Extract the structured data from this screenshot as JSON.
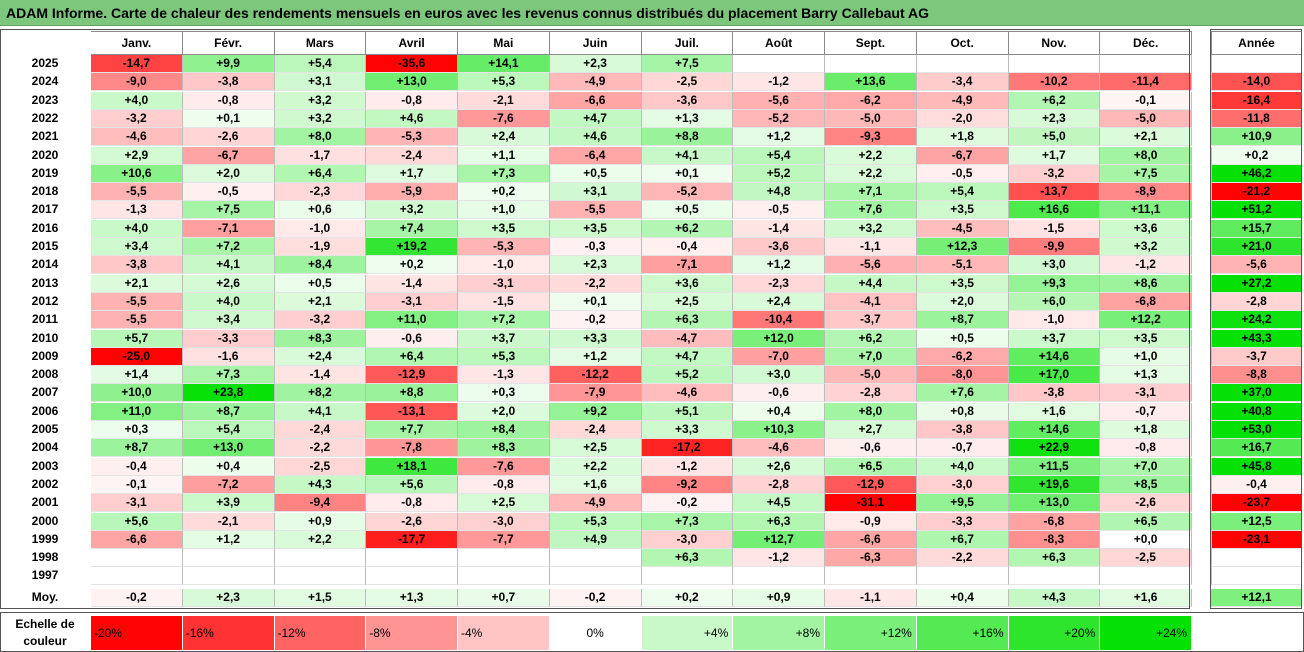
{
  "title": "ADAM Informe. Carte de chaleur des rendements mensuels en euros avec les revenus connus distribués du placement Barry Callebaut AG",
  "chart_data": {
    "type": "heatmap",
    "months": [
      "Janv.",
      "Févr.",
      "Mars",
      "Avril",
      "Mai",
      "Juin",
      "Juil.",
      "Août",
      "Sept.",
      "Oct.",
      "Nov.",
      "Déc."
    ],
    "annual_header": "Année",
    "rows": [
      {
        "year": "2025",
        "m": [
          "-14,7",
          "+9,9",
          "+5,4",
          "-35,6",
          "+14,1",
          "+2,3",
          "+7,5",
          "",
          "",
          "",
          "",
          ""
        ],
        "annual": ""
      },
      {
        "year": "2024",
        "m": [
          "-9,0",
          "-3,8",
          "+3,1",
          "+13,0",
          "+5,3",
          "-4,9",
          "-2,5",
          "-1,2",
          "+13,6",
          "-3,4",
          "-10,2",
          "-11,4"
        ],
        "annual": "-14,0"
      },
      {
        "year": "2023",
        "m": [
          "+4,0",
          "-0,8",
          "+3,2",
          "-0,8",
          "-2,1",
          "-6,6",
          "-3,6",
          "-5,6",
          "-6,2",
          "-4,9",
          "+6,2",
          "-0,1"
        ],
        "annual": "-16,4"
      },
      {
        "year": "2022",
        "m": [
          "-3,2",
          "+0,1",
          "+3,2",
          "+4,6",
          "-7,6",
          "+4,7",
          "+1,3",
          "-5,2",
          "-5,0",
          "-2,0",
          "+2,3",
          "-5,0"
        ],
        "annual": "-11,8"
      },
      {
        "year": "2021",
        "m": [
          "-4,6",
          "-2,6",
          "+8,0",
          "-5,3",
          "+2,4",
          "+4,6",
          "+8,8",
          "+1,2",
          "-9,3",
          "+1,8",
          "+5,0",
          "+2,1"
        ],
        "annual": "+10,9"
      },
      {
        "year": "2020",
        "m": [
          "+2,9",
          "-6,7",
          "-1,7",
          "-2,4",
          "+1,1",
          "-6,4",
          "+4,1",
          "+5,4",
          "+2,2",
          "-6,7",
          "+1,7",
          "+8,0"
        ],
        "annual": "+0,2"
      },
      {
        "year": "2019",
        "m": [
          "+10,6",
          "+2,0",
          "+6,4",
          "+1,7",
          "+7,3",
          "+0,5",
          "+0,1",
          "+5,2",
          "+2,2",
          "-0,5",
          "-3,2",
          "+7,5"
        ],
        "annual": "+46,2"
      },
      {
        "year": "2018",
        "m": [
          "-5,5",
          "-0,5",
          "-2,3",
          "-5,9",
          "+0,2",
          "+3,1",
          "-5,2",
          "+4,8",
          "+7,1",
          "+5,4",
          "-13,7",
          "-8,9"
        ],
        "annual": "-21,2"
      },
      {
        "year": "2017",
        "m": [
          "-1,3",
          "+7,5",
          "+0,6",
          "+3,2",
          "+1,0",
          "-5,5",
          "+0,5",
          "-0,5",
          "+7,6",
          "+3,5",
          "+16,6",
          "+11,1"
        ],
        "annual": "+51,2"
      },
      {
        "year": "2016",
        "m": [
          "+4,0",
          "-7,1",
          "-1,0",
          "+7,4",
          "+3,5",
          "+3,5",
          "+6,2",
          "-1,4",
          "+3,2",
          "-4,5",
          "-1,5",
          "+3,6"
        ],
        "annual": "+15,7"
      },
      {
        "year": "2015",
        "m": [
          "+3,4",
          "+7,2",
          "-1,9",
          "+19,2",
          "-5,3",
          "-0,3",
          "-0,4",
          "-3,6",
          "-1,1",
          "+12,3",
          "-9,9",
          "+3,2"
        ],
        "annual": "+21,0"
      },
      {
        "year": "2014",
        "m": [
          "-3,8",
          "+4,1",
          "+8,4",
          "+0,2",
          "-1,0",
          "+2,3",
          "-7,1",
          "+1,2",
          "-5,6",
          "-5,1",
          "+3,0",
          "-1,2"
        ],
        "annual": "-5,6"
      },
      {
        "year": "2013",
        "m": [
          "+2,1",
          "+2,6",
          "+0,5",
          "-1,4",
          "-3,1",
          "-2,2",
          "+3,6",
          "-2,3",
          "+4,4",
          "+3,5",
          "+9,3",
          "+8,6"
        ],
        "annual": "+27,2"
      },
      {
        "year": "2012",
        "m": [
          "-5,5",
          "+4,0",
          "+2,1",
          "-3,1",
          "-1,5",
          "+0,1",
          "+2,5",
          "+2,4",
          "-4,1",
          "+2,0",
          "+6,0",
          "-6,8"
        ],
        "annual": "-2,8"
      },
      {
        "year": "2011",
        "m": [
          "-5,5",
          "+3,4",
          "-3,2",
          "+11,0",
          "+7,2",
          "-0,2",
          "+6,3",
          "-10,4",
          "-3,7",
          "+8,7",
          "-1,0",
          "+12,2"
        ],
        "annual": "+24,2"
      },
      {
        "year": "2010",
        "m": [
          "+5,7",
          "-3,3",
          "+8,3",
          "-0,6",
          "+3,7",
          "+3,3",
          "-4,7",
          "+12,0",
          "+6,2",
          "+0,5",
          "+3,7",
          "+3,5"
        ],
        "annual": "+43,3"
      },
      {
        "year": "2009",
        "m": [
          "-25,0",
          "-1,6",
          "+2,4",
          "+6,4",
          "+5,3",
          "+1,2",
          "+4,7",
          "-7,0",
          "+7,0",
          "-6,2",
          "+14,6",
          "+1,0"
        ],
        "annual": "-3,7"
      },
      {
        "year": "2008",
        "m": [
          "+1,4",
          "+7,3",
          "-1,4",
          "-12,9",
          "-1,3",
          "-12,2",
          "+5,2",
          "+3,0",
          "-5,0",
          "-8,0",
          "+17,0",
          "+1,3"
        ],
        "annual": "-8,8"
      },
      {
        "year": "2007",
        "m": [
          "+10,0",
          "+23,8",
          "+8,2",
          "+8,8",
          "+0,3",
          "-7,9",
          "-4,6",
          "-0,6",
          "-2,8",
          "+7,6",
          "-3,8",
          "-3,1"
        ],
        "annual": "+37,0"
      },
      {
        "year": "2006",
        "m": [
          "+11,0",
          "+8,7",
          "+4,1",
          "-13,1",
          "+2,0",
          "+9,2",
          "+5,1",
          "+0,4",
          "+8,0",
          "+0,8",
          "+1,6",
          "-0,7"
        ],
        "annual": "+40,8"
      },
      {
        "year": "2005",
        "m": [
          "+0,3",
          "+5,4",
          "-2,4",
          "+7,7",
          "+8,4",
          "-2,4",
          "+3,3",
          "+10,3",
          "+2,7",
          "-3,8",
          "+14,6",
          "+1,8"
        ],
        "annual": "+53,0"
      },
      {
        "year": "2004",
        "m": [
          "+8,7",
          "+13,0",
          "-2,2",
          "-7,8",
          "+8,3",
          "+2,5",
          "-17,2",
          "-4,6",
          "-0,6",
          "-0,7",
          "+22,9",
          "-0,8"
        ],
        "annual": "+16,7"
      },
      {
        "year": "2003",
        "m": [
          "-0,4",
          "+0,4",
          "-2,5",
          "+18,1",
          "-7,6",
          "+2,2",
          "-1,2",
          "+2,6",
          "+6,5",
          "+4,0",
          "+11,5",
          "+7,0"
        ],
        "annual": "+45,8"
      },
      {
        "year": "2002",
        "m": [
          "-0,1",
          "-7,2",
          "+4,3",
          "+5,6",
          "-0,8",
          "+1,6",
          "-9,2",
          "-2,8",
          "-12,9",
          "-3,0",
          "+19,6",
          "+8,5"
        ],
        "annual": "-0,4"
      },
      {
        "year": "2001",
        "m": [
          "-3,1",
          "+3,9",
          "-9,4",
          "-0,8",
          "+2,5",
          "-4,9",
          "-0,2",
          "+4,5",
          "-31,1",
          "+9,5",
          "+13,0",
          "-2,6"
        ],
        "annual": "-23,7"
      },
      {
        "year": "2000",
        "m": [
          "+5,6",
          "-2,1",
          "+0,9",
          "-2,6",
          "-3,0",
          "+5,3",
          "+7,3",
          "+6,3",
          "-0,9",
          "-3,3",
          "-6,8",
          "+6,5"
        ],
        "annual": "+12,5"
      },
      {
        "year": "1999",
        "m": [
          "-6,6",
          "+1,2",
          "+2,2",
          "-17,7",
          "-7,7",
          "+4,9",
          "-3,0",
          "+12,7",
          "-6,6",
          "+6,7",
          "-8,3",
          "+0,0"
        ],
        "annual": "-23,1"
      },
      {
        "year": "1998",
        "m": [
          "",
          "",
          "",
          "",
          "",
          "",
          "+6,3",
          "-1,2",
          "-6,3",
          "-2,2",
          "+6,3",
          "-2,5"
        ],
        "annual": ""
      },
      {
        "year": "1997",
        "m": [
          "",
          "",
          "",
          "",
          "",
          "",
          "",
          "",
          "",
          "",
          "",
          ""
        ],
        "annual": ""
      }
    ],
    "average": {
      "label": "Moy.",
      "m": [
        "-0,2",
        "+2,3",
        "+1,5",
        "+1,3",
        "+0,7",
        "-0,2",
        "+0,2",
        "+0,9",
        "-1,1",
        "+0,4",
        "+4,3",
        "+1,6"
      ],
      "annual": "+12,1"
    },
    "scale": {
      "label": "Echelle de couleur",
      "steps": [
        "-20%",
        "-16%",
        "-12%",
        "-8%",
        "-4%",
        "0%",
        "+4%",
        "+8%",
        "+12%",
        "+16%",
        "+20%",
        "+24%"
      ]
    },
    "colors": {
      "neg_max": "#ff0000",
      "pos_max": "#00e000",
      "neutral": "#ffffff",
      "title_bg": "#7dc77d"
    }
  }
}
